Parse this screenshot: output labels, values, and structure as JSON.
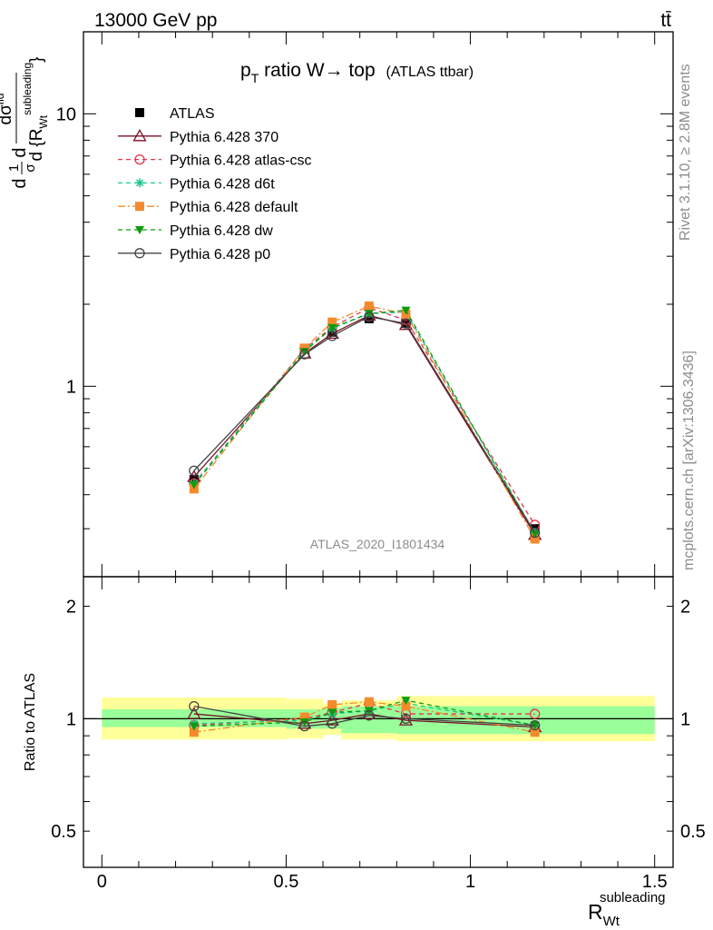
{
  "header": {
    "energy_label": "13000 GeV pp",
    "process_label": "tt̄"
  },
  "side_labels": {
    "rivet": "Rivet 3.1.10, ≥ 2.8M events",
    "mcplots": "mcplots.cern.ch [arXiv:1306.3436]"
  },
  "chart_data": [
    {
      "type": "line",
      "panel": "main",
      "title_parts": {
        "p": "p",
        "sub": "T",
        "main": " ratio W",
        "arrow": "→",
        "target": " top",
        "paren": "(ATLAS ttbar)"
      },
      "ylabel_parts": {
        "frac": "1",
        "sigma": "σ",
        "d": "d",
        "dsig": "dσ",
        "fid": "fid",
        "dR": "d {R",
        "sub": "Wt",
        "sup": "subleading",
        "close": "}"
      },
      "xlim": [
        -0.05,
        1.55
      ],
      "ylim": [
        0.2,
        20
      ],
      "yscale": "log",
      "y_ticks": [
        {
          "value": 1,
          "label": "1"
        },
        {
          "value": 10,
          "label": "10"
        }
      ],
      "watermark": "ATLAS_2020_I1801434",
      "legend_position": "top-left",
      "x": [
        0.25,
        0.55,
        0.625,
        0.725,
        0.825,
        1.175
      ],
      "series": [
        {
          "name": "ATLAS",
          "color": "#000000",
          "marker": "square",
          "line": "none",
          "values": [
            0.455,
            1.37,
            1.58,
            1.77,
            1.7,
            0.3
          ]
        },
        {
          "name": "Pythia 6.428 370",
          "color": "#7a1126",
          "marker": "triangle-open",
          "line": "solid",
          "values": [
            0.465,
            1.32,
            1.56,
            1.82,
            1.68,
            0.285
          ]
        },
        {
          "name": "Pythia 6.428 atlas-csc",
          "color": "#e8344b",
          "marker": "circle-open",
          "line": "dashed",
          "values": [
            0.44,
            1.37,
            1.65,
            1.94,
            1.75,
            0.31
          ]
        },
        {
          "name": "Pythia 6.428 d6t",
          "color": "#1cc78c",
          "marker": "star",
          "line": "dashed",
          "values": [
            0.44,
            1.36,
            1.63,
            1.85,
            1.87,
            0.29
          ]
        },
        {
          "name": "Pythia 6.428 default",
          "color": "#f58a2c",
          "marker": "square",
          "line": "dashdot",
          "values": [
            0.42,
            1.38,
            1.72,
            1.97,
            1.84,
            0.275
          ]
        },
        {
          "name": "Pythia 6.428 dw",
          "color": "#119a11",
          "marker": "triangle-down",
          "line": "dashed",
          "values": [
            0.435,
            1.34,
            1.64,
            1.85,
            1.9,
            0.288
          ]
        },
        {
          "name": "Pythia 6.428 p0",
          "color": "#444444",
          "marker": "circle-open",
          "line": "solid",
          "values": [
            0.49,
            1.31,
            1.53,
            1.8,
            1.7,
            0.29
          ]
        }
      ]
    },
    {
      "type": "line",
      "panel": "ratio",
      "ylabel": "Ratio to ATLAS",
      "xlabel_parts": {
        "R": "R",
        "sub": "Wt",
        "sup": "subleading"
      },
      "xlim": [
        -0.05,
        1.55
      ],
      "ylim": [
        0.4,
        2.4
      ],
      "yscale": "log",
      "x_ticks": [
        {
          "value": 0,
          "label": "0"
        },
        {
          "value": 0.5,
          "label": "0.5"
        },
        {
          "value": 1,
          "label": "1"
        },
        {
          "value": 1.5,
          "label": "1.5"
        }
      ],
      "y_ticks": [
        {
          "value": 0.5,
          "label": "0.5"
        },
        {
          "value": 1,
          "label": "1"
        },
        {
          "value": 2,
          "label": "2"
        }
      ],
      "reference_line": 1,
      "bands": [
        {
          "x0": 0.0,
          "x1": 0.5,
          "inner": [
            0.95,
            1.06
          ],
          "outer": [
            0.88,
            1.14
          ]
        },
        {
          "x0": 0.5,
          "x1": 0.6,
          "inner": [
            0.94,
            1.06
          ],
          "outer": [
            0.885,
            1.13
          ]
        },
        {
          "x0": 0.6,
          "x1": 0.65,
          "inner": [
            0.94,
            1.07
          ],
          "outer": [
            0.905,
            1.1
          ]
        },
        {
          "x0": 0.65,
          "x1": 0.8,
          "inner": [
            0.915,
            1.08
          ],
          "outer": [
            0.88,
            1.12
          ]
        },
        {
          "x0": 0.8,
          "x1": 1.0,
          "inner": [
            0.91,
            1.08
          ],
          "outer": [
            0.87,
            1.15
          ]
        },
        {
          "x0": 1.0,
          "x1": 1.5,
          "inner": [
            0.91,
            1.08
          ],
          "outer": [
            0.87,
            1.15
          ]
        }
      ],
      "x": [
        0.25,
        0.55,
        0.625,
        0.725,
        0.825,
        1.175
      ],
      "series": [
        {
          "name": "Pythia 6.428 370",
          "color": "#7a1126",
          "marker": "triangle-open",
          "line": "solid",
          "values": [
            1.03,
            0.97,
            0.99,
            1.03,
            0.99,
            0.95
          ]
        },
        {
          "name": "Pythia 6.428 atlas-csc",
          "color": "#e8344b",
          "marker": "circle-open",
          "line": "dashed",
          "values": [
            0.96,
            1.0,
            1.04,
            1.1,
            1.03,
            1.03
          ]
        },
        {
          "name": "Pythia 6.428 d6t",
          "color": "#1cc78c",
          "marker": "star",
          "line": "dashed",
          "values": [
            0.97,
            0.99,
            1.03,
            1.05,
            1.1,
            0.96
          ]
        },
        {
          "name": "Pythia 6.428 default",
          "color": "#f58a2c",
          "marker": "square",
          "line": "dashdot",
          "values": [
            0.92,
            1.01,
            1.09,
            1.11,
            1.08,
            0.92
          ]
        },
        {
          "name": "Pythia 6.428 dw",
          "color": "#119a11",
          "marker": "triangle-down",
          "line": "dashed",
          "values": [
            0.955,
            0.98,
            1.04,
            1.05,
            1.12,
            0.96
          ]
        },
        {
          "name": "Pythia 6.428 p0",
          "color": "#444444",
          "marker": "circle-open",
          "line": "solid",
          "values": [
            1.08,
            0.955,
            0.97,
            1.02,
            1.0,
            0.96
          ]
        }
      ]
    }
  ]
}
